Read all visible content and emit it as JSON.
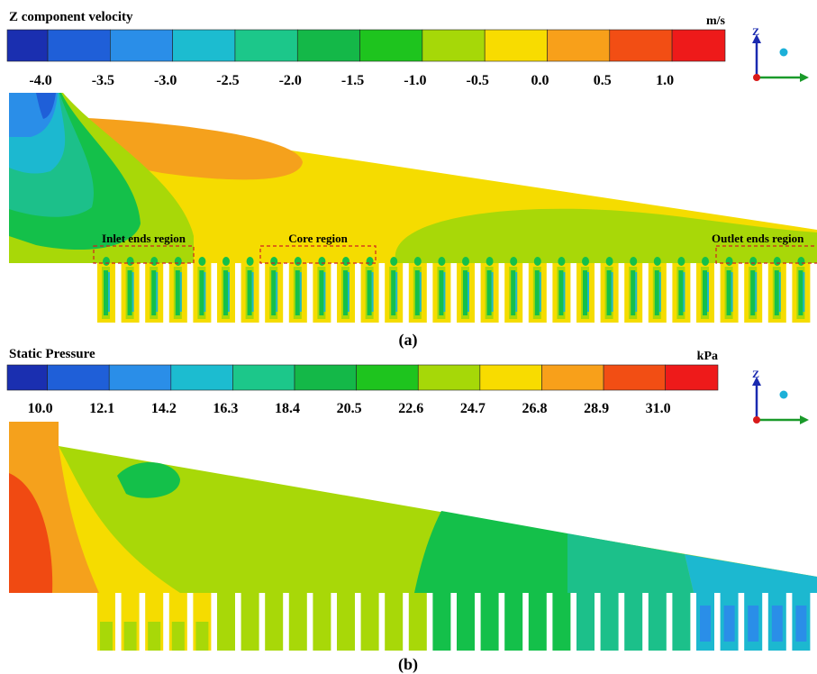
{
  "panels": [
    {
      "title": "Z component velocity",
      "unit": "m/s",
      "colorbar": {
        "colors": [
          "#1a2fb0",
          "#1f5fd8",
          "#2a8ee8",
          "#1cbcd0",
          "#1cc78a",
          "#14b848",
          "#1ec41e",
          "#a6d808",
          "#f8dc00",
          "#f8a01a",
          "#f24e14",
          "#ee1a1a"
        ],
        "ticks": [
          "-4.0",
          "-3.5",
          "-3.0",
          "-2.5",
          "-2.0",
          "-1.5",
          "-1.0",
          "-0.5",
          "0.0",
          "0.5",
          "1.0"
        ]
      },
      "regions": [
        "Inlet ends region",
        "Core region",
        "Outlet ends region"
      ],
      "axis_label": "Z",
      "caption": "(a)"
    },
    {
      "title": "Static Pressure",
      "unit": "kPa",
      "colorbar": {
        "colors": [
          "#1a2fb0",
          "#1f5fd8",
          "#2a8ee8",
          "#1cbcd0",
          "#1cc78a",
          "#14b848",
          "#1ec41e",
          "#a6d808",
          "#f8dc00",
          "#f8a01a",
          "#f24e14",
          "#ee1a1a"
        ],
        "ticks": [
          "10.0",
          "12.1",
          "14.2",
          "16.3",
          "18.4",
          "20.5",
          "22.6",
          "24.7",
          "26.8",
          "28.9",
          "31.0"
        ]
      },
      "axis_label": "Z",
      "caption": "(b)"
    }
  ]
}
